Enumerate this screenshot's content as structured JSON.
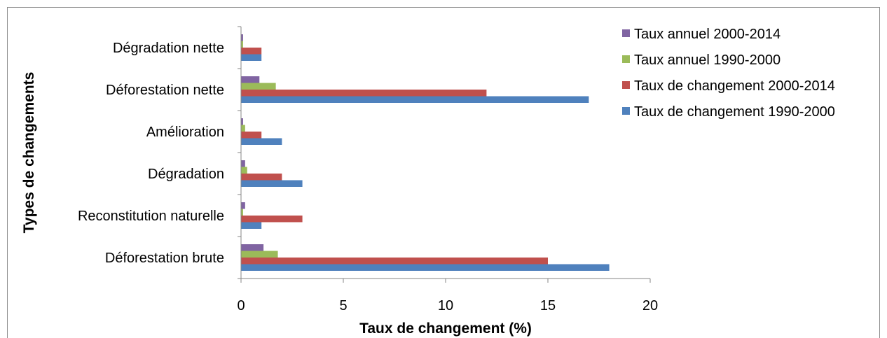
{
  "chart_data": {
    "type": "bar",
    "orientation": "horizontal",
    "categories": [
      "Déforestation brute",
      "Reconstitution naturelle",
      "Dégradation",
      "Amélioration",
      "Déforestation nette",
      "Dégradation nette"
    ],
    "series": [
      {
        "name": "Taux de changement 1990-2000",
        "color": "#4f81bd",
        "values": [
          18,
          1,
          3,
          2,
          17,
          1
        ]
      },
      {
        "name": "Taux de changement 2000-2014",
        "color": "#c0504d",
        "values": [
          15,
          3,
          2,
          1,
          12,
          1
        ]
      },
      {
        "name": "Taux annuel 1990-2000",
        "color": "#9bbb59",
        "values": [
          1.8,
          0.1,
          0.3,
          0.2,
          1.7,
          0.1
        ]
      },
      {
        "name": "Taux annuel 2000-2014",
        "color": "#8064a2",
        "values": [
          1.1,
          0.2,
          0.2,
          0.1,
          0.9,
          0.1
        ]
      }
    ],
    "legend_order": [
      3,
      2,
      1,
      0
    ],
    "xlim": [
      0,
      20
    ],
    "xticks": [
      0,
      5,
      10,
      15,
      20
    ],
    "xlabel": "Taux de changement (%)",
    "ylabel": "Types de changements",
    "grid": false,
    "legend_position": "top-right"
  }
}
